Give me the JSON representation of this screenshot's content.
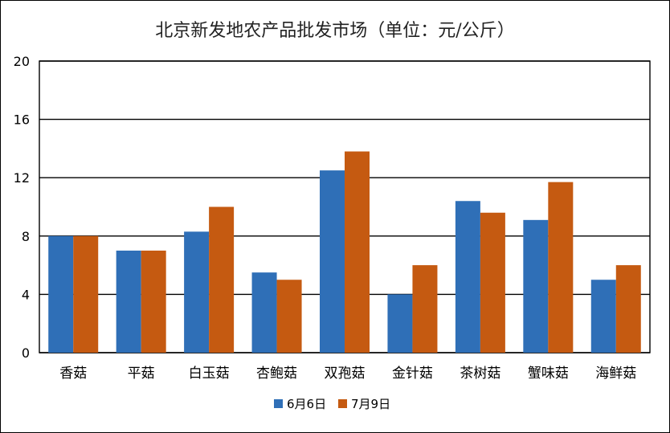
{
  "chart_data": {
    "type": "bar",
    "title": "北京新发地农产品批发市场（单位：元/公斤）",
    "xlabel": "",
    "ylabel": "",
    "categories": [
      "香菇",
      "平菇",
      "白玉菇",
      "杏鲍菇",
      "双孢菇",
      "金针菇",
      "茶树菇",
      "蟹味菇",
      "海鲜菇"
    ],
    "series": [
      {
        "name": "6月6日",
        "color": "#2f6fb7",
        "values": [
          8,
          7,
          8.3,
          5.5,
          12.5,
          4,
          10.4,
          9.1,
          5
        ]
      },
      {
        "name": "7月9日",
        "color": "#c55a11",
        "values": [
          8,
          7,
          10,
          5,
          13.8,
          6,
          9.6,
          11.7,
          6
        ]
      }
    ],
    "ylim": [
      0,
      20
    ],
    "yticks": [
      "0",
      "4",
      "8",
      "12",
      "16",
      "20"
    ],
    "grid": true,
    "legend_position": "bottom"
  }
}
